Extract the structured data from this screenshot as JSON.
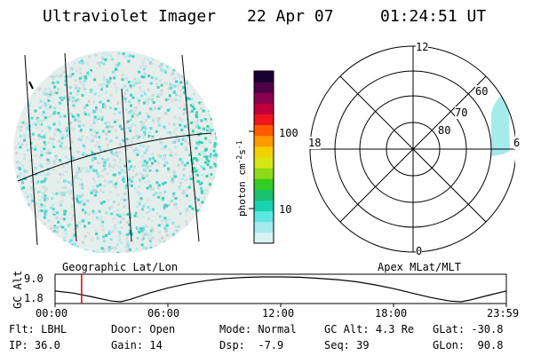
{
  "header": {
    "title": "Ultraviolet Imager",
    "date": "22 Apr 07",
    "time": "01:24:51 UT"
  },
  "map_panel": {
    "geo_label": "Geographic Lat/Lon",
    "apex_label": "Apex MLat/MLT"
  },
  "colorbar": {
    "unit_main": "photon cm",
    "unit_exp1": "-2",
    "unit_mid": "s",
    "unit_exp2": "-1",
    "ticks": [
      "100",
      "10"
    ],
    "colors": [
      "#d9f2f2",
      "#a6ebeb",
      "#5ee6e6",
      "#1ad1b0",
      "#19c36e",
      "#33cc22",
      "#8fdb1a",
      "#d6e614",
      "#f2d100",
      "#ff9a00",
      "#ff5a00",
      "#f0141e",
      "#c0003c",
      "#8c0050",
      "#500048",
      "#1a0030"
    ]
  },
  "polar_plot": {
    "mlt_labels": [
      "12",
      "18",
      "6",
      "0"
    ],
    "lat_labels": [
      "60",
      "70",
      "80"
    ]
  },
  "chart_data": {
    "type": "line",
    "title": "",
    "xlabel": "",
    "ylabel": "GC Alt",
    "y_ticks": [
      "9.0",
      "1.8"
    ],
    "x_ticks": [
      "00:00",
      "06:00",
      "12:00",
      "18:00",
      "23:59"
    ],
    "xlim": [
      0,
      24
    ],
    "ylim": [
      1.8,
      9.0
    ],
    "current_time_hours": 1.41,
    "series": [
      {
        "x": [
          0,
          1.0,
          2.0,
          3.0,
          3.5,
          4.0,
          5.0,
          6.0,
          7.0,
          8.0,
          9.0,
          10.0,
          11.0,
          12.0,
          13.0,
          14.0,
          15.0,
          16.0,
          17.0,
          18.0,
          19.0,
          20.0,
          21.0,
          21.6,
          22.0,
          23.0,
          23.98
        ],
        "y": [
          4.9,
          4.3,
          3.2,
          2.0,
          1.8,
          2.5,
          4.3,
          5.8,
          7.0,
          7.9,
          8.5,
          8.85,
          9.0,
          9.0,
          8.9,
          8.6,
          8.2,
          7.6,
          6.7,
          5.6,
          4.3,
          3.0,
          2.0,
          1.8,
          2.2,
          3.6,
          4.9
        ]
      }
    ]
  },
  "status": {
    "flt_label": "Flt:",
    "flt_value": "LBHL",
    "ip_label": "IP:",
    "ip_value": "36.0",
    "door_label": "Door:",
    "door_value": "Open",
    "gain_label": "Gain:",
    "gain_value": "14",
    "mode_label": "Mode:",
    "mode_value": "Normal",
    "dsp_label": "Dsp:",
    "dsp_value": "-7.9",
    "gcalt_label": "GC Alt:",
    "gcalt_value": "4.3 Re",
    "seq_label": "Seq:",
    "seq_value": "39",
    "glat_label": "GLat:",
    "glat_value": "-30.8",
    "glon_label": "GLon:",
    "glon_value": "90.8"
  }
}
